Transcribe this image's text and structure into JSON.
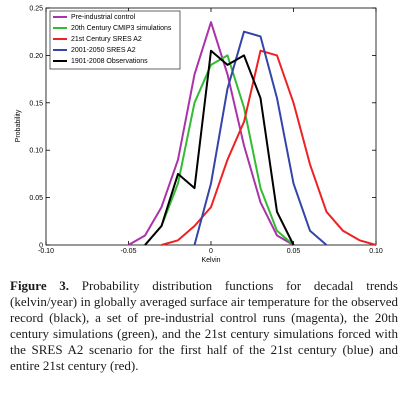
{
  "chart_data": {
    "type": "line",
    "xlabel": "Kelvin",
    "ylabel": "Probability",
    "xlim": [
      -0.1,
      0.1
    ],
    "ylim": [
      0,
      0.25
    ],
    "x_ticks": [
      -0.1,
      -0.05,
      0,
      0.05,
      0.1
    ],
    "x_tick_labels": [
      "-0.10",
      "-0.05",
      "0",
      "0.05",
      "0.10"
    ],
    "y_ticks": [
      0,
      0.05,
      0.1,
      0.15,
      0.2,
      0.25
    ],
    "y_tick_labels": [
      "0",
      "0.05",
      "0.10",
      "0.15",
      "0.20",
      "0.25"
    ],
    "legend_position": "top-left",
    "series": [
      {
        "name": "Pre-industrial control",
        "color": "#aa33aa",
        "x": [
          -0.05,
          -0.04,
          -0.03,
          -0.02,
          -0.01,
          0.0,
          0.01,
          0.02,
          0.03,
          0.04,
          0.05
        ],
        "y": [
          0.0,
          0.01,
          0.04,
          0.09,
          0.18,
          0.235,
          0.18,
          0.105,
          0.045,
          0.01,
          0.0
        ]
      },
      {
        "name": "20th Century CMIP3 simulations",
        "color": "#33bb33",
        "x": [
          -0.04,
          -0.03,
          -0.02,
          -0.01,
          0.0,
          0.01,
          0.02,
          0.03,
          0.04,
          0.05
        ],
        "y": [
          0.0,
          0.02,
          0.065,
          0.15,
          0.19,
          0.2,
          0.145,
          0.06,
          0.015,
          0.0
        ]
      },
      {
        "name": "21st Century SRES A2",
        "color": "#ee2222",
        "x": [
          -0.03,
          -0.02,
          -0.01,
          0.0,
          0.01,
          0.02,
          0.03,
          0.04,
          0.05,
          0.06,
          0.07,
          0.08,
          0.09,
          0.1
        ],
        "y": [
          0.0,
          0.005,
          0.02,
          0.04,
          0.09,
          0.13,
          0.205,
          0.2,
          0.15,
          0.085,
          0.035,
          0.015,
          0.005,
          0.0
        ]
      },
      {
        "name": "2001-2050 SRES A2",
        "color": "#3344aa",
        "x": [
          -0.01,
          0.0,
          0.01,
          0.02,
          0.03,
          0.04,
          0.05,
          0.06,
          0.07
        ],
        "y": [
          0.0,
          0.065,
          0.165,
          0.225,
          0.22,
          0.155,
          0.065,
          0.015,
          0.0
        ]
      },
      {
        "name": "1901-2008 Observations",
        "color": "#000000",
        "x": [
          -0.04,
          -0.03,
          -0.02,
          -0.01,
          0.0,
          0.01,
          0.02,
          0.03,
          0.04,
          0.05
        ],
        "y": [
          0.0,
          0.02,
          0.075,
          0.06,
          0.205,
          0.19,
          0.2,
          0.155,
          0.035,
          0.0
        ]
      }
    ]
  },
  "caption": {
    "label": "Figure 3.",
    "text": "Probability distribution functions for decadal trends (kelvin/year) in globally averaged surface air temperature for the observed record (black), a set of pre-industrial control runs (magenta), the 20th century simulations (green), and the 21st century simulations forced with the SRES A2 scenario for the first half of the 21st century (blue) and entire 21st century (red)."
  }
}
